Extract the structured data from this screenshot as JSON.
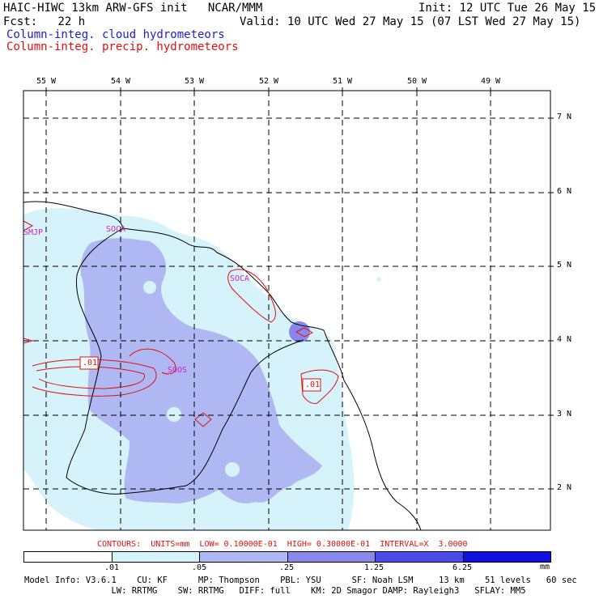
{
  "header": {
    "model": "HAIC-HIWC 13km ARW-GFS init   NCAR/MMM",
    "init": "Init: 12 UTC Tue 26 May 15",
    "fcst": "Fcst:   22 h",
    "valid": "Valid: 10 UTC Wed 27 May 15 (07 LST Wed 27 May 15)"
  },
  "legend": {
    "cloud": "Column-integ. cloud hydrometeors",
    "precip": "Column-integ. precip. hydrometeors",
    "cloud_color": "#2020c8",
    "precip_color": "#e01010"
  },
  "axes": {
    "lon_labels": [
      "55 W",
      "54 W",
      "53 W",
      "52 W",
      "51 W",
      "50 W",
      "49 W"
    ],
    "lat_labels": [
      "7 N",
      "6 N",
      "5 N",
      "4 N",
      "3 N",
      "2 N"
    ]
  },
  "map_labels": {
    "stations": [
      "SMJP",
      "SOCA",
      "SOCA",
      "SOOS"
    ],
    "contour_labels": [
      ".01",
      ".01"
    ]
  },
  "contours_line": "CONTOURS:  UNITS=mm  LOW= 0.10000E-01  HIGH= 0.30000E-01  INTERVAL=X  3.0000",
  "colorbar": {
    "labels": [
      ".01",
      ".05",
      ".25",
      "1.25",
      "6.25"
    ],
    "unit": "mm",
    "colors": [
      "#ffffff",
      "#d6f3fb",
      "#b0b8f4",
      "#8888ec",
      "#4a4ae6",
      "#1212e0"
    ]
  },
  "model_info": {
    "line1": "Model Info: V3.6.1    CU: KF      MP: Thompson    PBL: YSU      SF: Noah LSM     13 km    51 levels   60 sec",
    "line2": "                 LW: RRTMG    SW: RRTMG   DIFF: full    KM: 2D Smagor DAMP: Rayleigh3   SFLAY: MM5"
  }
}
